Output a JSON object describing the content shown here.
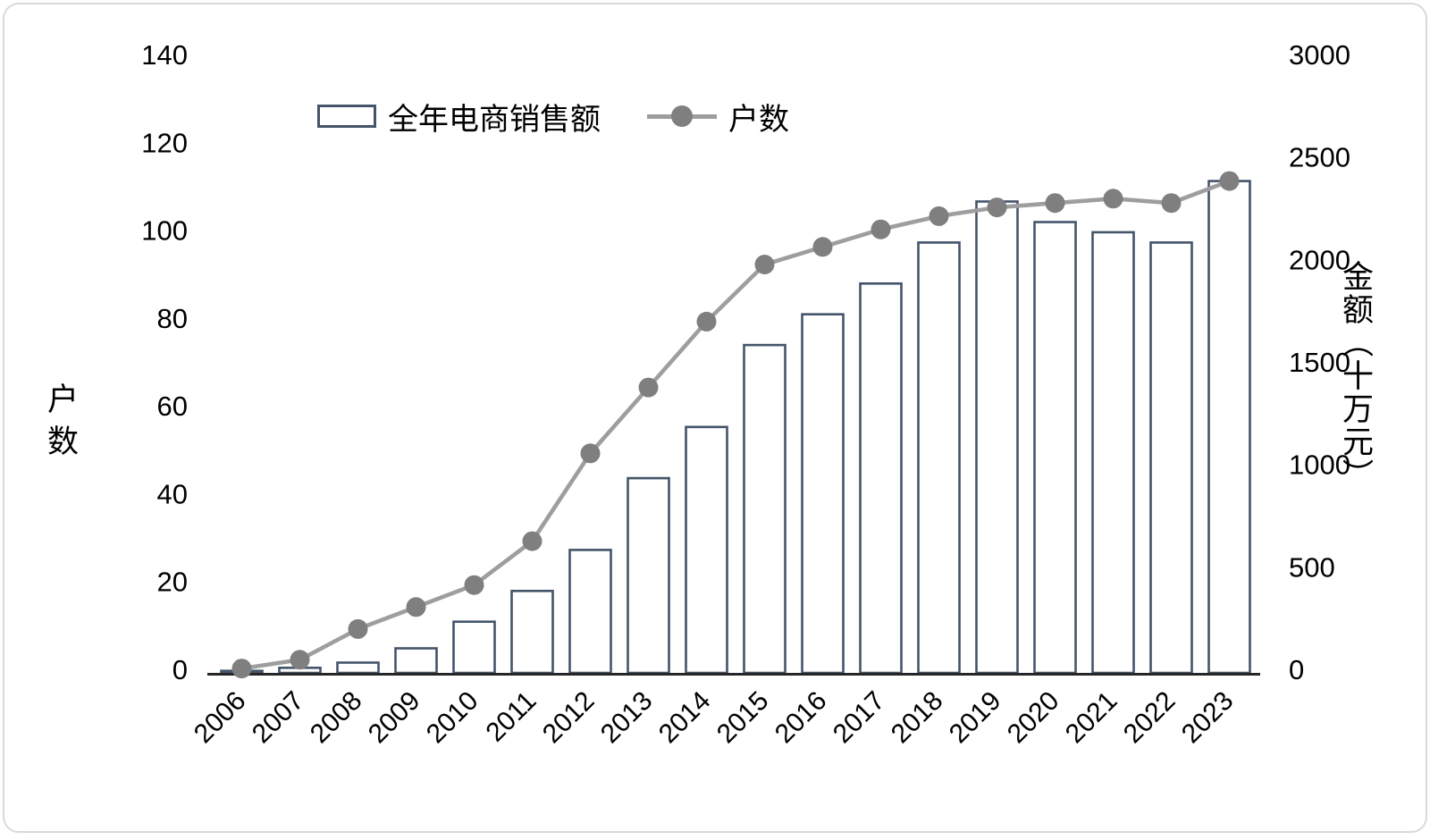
{
  "chart_data": {
    "type": "combo",
    "title": "",
    "categories": [
      "2006",
      "2007",
      "2008",
      "2009",
      "2010",
      "2011",
      "2012",
      "2013",
      "2014",
      "2015",
      "2016",
      "2017",
      "2018",
      "2019",
      "2020",
      "2021",
      "2022",
      "2023"
    ],
    "series": [
      {
        "name": "全年电商销售额",
        "type": "bar",
        "axis": "right",
        "values": [
          10,
          25,
          50,
          120,
          250,
          400,
          600,
          950,
          1200,
          1600,
          1750,
          1900,
          2100,
          2300,
          2200,
          2150,
          2100,
          2400
        ]
      },
      {
        "name": "户数",
        "type": "line",
        "axis": "left",
        "values": [
          1,
          3,
          10,
          15,
          20,
          30,
          50,
          65,
          80,
          93,
          97,
          101,
          104,
          106,
          107,
          108,
          107,
          112
        ]
      }
    ],
    "left_axis": {
      "title": "户数",
      "min": 0,
      "max": 140,
      "step": 20,
      "ticks": [
        0,
        20,
        40,
        60,
        80,
        100,
        120,
        140
      ]
    },
    "right_axis": {
      "title": "金额（十万元）",
      "min": 0,
      "max": 3000,
      "step": 500,
      "ticks": [
        0,
        500,
        1000,
        1500,
        2000,
        2500,
        3000
      ]
    },
    "legend": {
      "position": "top",
      "items": [
        "全年电商销售额",
        "户数"
      ]
    },
    "grid": false,
    "colors": {
      "bar_fill": "#ffffff",
      "bar_border": "#44546A",
      "line": "#9e9e9e",
      "marker": "#7f7f7f",
      "axis_line": "#262626",
      "tick_text": "#000000"
    }
  }
}
